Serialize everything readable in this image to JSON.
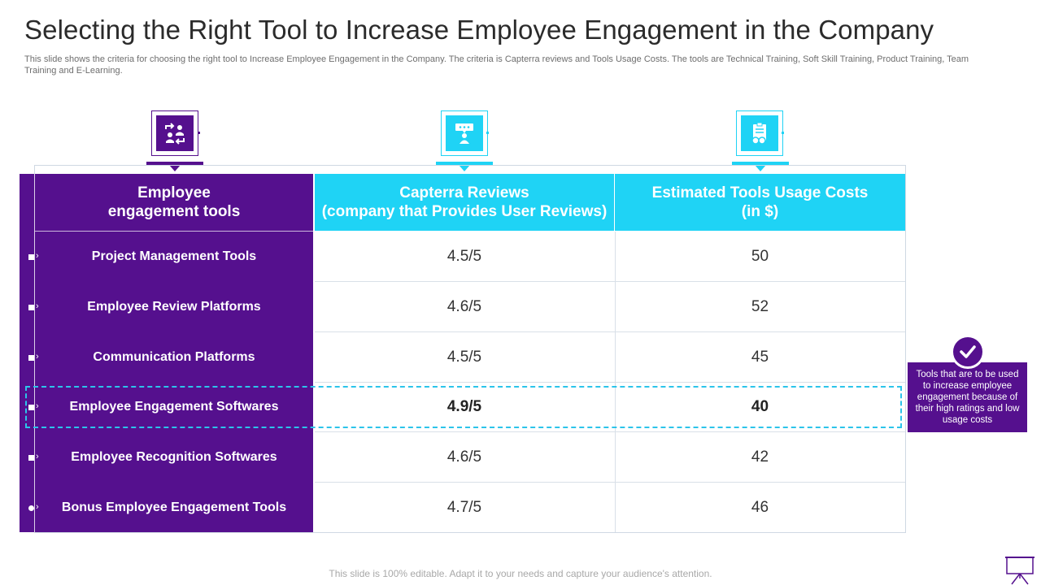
{
  "title": "Selecting the Right Tool to Increase Employee Engagement in the Company",
  "subtitle": "This slide shows the criteria for choosing the right tool to Increase Employee Engagement in the Company. The criteria is Capterra reviews and Tools Usage Costs. The tools are Technical Training, Soft Skill Training, Product Training, Team Training and E-Learning.",
  "colors": {
    "purple": "#55108e",
    "cyan": "#1fd3f5",
    "highlight": "#2cc4ea"
  },
  "icons": [
    "team-exchange-icon",
    "presentation-person-icon",
    "clipboard-coins-icon"
  ],
  "headers": {
    "tools": "Employee\nengagement tools",
    "reviews": "Capterra Reviews\n(company that Provides User Reviews)",
    "costs": "Estimated Tools Usage Costs\n(in $)"
  },
  "rows": [
    {
      "tool": "Project Management Tools",
      "rating": "4.5/5",
      "cost": "50"
    },
    {
      "tool": "Employee Review Platforms",
      "rating": "4.6/5",
      "cost": "52"
    },
    {
      "tool": "Communication Platforms",
      "rating": "4.5/5",
      "cost": "45"
    },
    {
      "tool": "Employee Engagement Softwares",
      "rating": "4.9/5",
      "cost": "40"
    },
    {
      "tool": "Employee Recognition Softwares",
      "rating": "4.6/5",
      "cost": "42"
    },
    {
      "tool": "Bonus Employee Engagement Tools",
      "rating": "4.7/5",
      "cost": "46"
    }
  ],
  "highlighted_row_index": 3,
  "note": "Tools that are to be used to increase employee engagement because of their high ratings and low usage costs",
  "footer": "This slide is 100% editable. Adapt it to your needs and capture your audience's attention."
}
